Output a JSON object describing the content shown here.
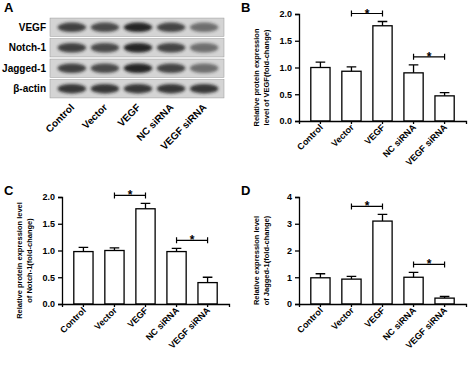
{
  "blot": {
    "panel_label": "A",
    "proteins": [
      "VEGF",
      "Notch-1",
      "Jagged-1",
      "β-actin"
    ],
    "lanes": [
      "Control",
      "Vector",
      "VEGF",
      "NC siRNA",
      "VEGF siRNA"
    ]
  },
  "chart_data": [
    {
      "type": "bar",
      "panel_label": "B",
      "y_label": [
        "Relative protein expression",
        "level of VEGF(fold-change)"
      ],
      "categories": [
        "Control",
        "Vector",
        "VEGF",
        "NC siRNA",
        "VEGF siRNA"
      ],
      "values": [
        1.0,
        0.93,
        1.78,
        0.9,
        0.47
      ],
      "errors": [
        0.1,
        0.08,
        0.08,
        0.15,
        0.06
      ],
      "color": "#ffffff",
      "ylim": [
        0,
        2
      ],
      "yticks": [
        {
          "value": 0,
          "label": "0.0"
        },
        0.5,
        {
          "value": 1,
          "label": "1.0"
        },
        1.5,
        {
          "value": 2,
          "label": "2.0"
        }
      ],
      "annotations": [
        {
          "text": "*",
          "between": [
            "Vector",
            "VEGF"
          ]
        },
        {
          "text": "*",
          "between": [
            "NC siRNA",
            "VEGF siRNA"
          ]
        }
      ]
    },
    {
      "type": "bar",
      "panel_label": "C",
      "y_label": [
        "Relative protein expression level",
        "of Notch-1(fold-change)"
      ],
      "categories": [
        "Control",
        "Vector",
        "VEGF",
        "NC siRNA",
        "VEGF siRNA"
      ],
      "values": [
        0.98,
        1.0,
        1.78,
        0.98,
        0.4
      ],
      "errors": [
        0.08,
        0.05,
        0.1,
        0.06,
        0.1
      ],
      "color": "#ffffff",
      "ylim": [
        0,
        2
      ],
      "yticks": [
        {
          "value": 0,
          "label": "0.0"
        },
        0.5,
        {
          "value": 1,
          "label": "1.0"
        },
        1.5,
        {
          "value": 2,
          "label": "2.0"
        }
      ],
      "annotations": [
        {
          "text": "*",
          "between": [
            "Vector",
            "VEGF"
          ]
        },
        {
          "text": "*",
          "between": [
            "NC siRNA",
            "VEGF siRNA"
          ]
        }
      ]
    },
    {
      "type": "bar",
      "panel_label": "D",
      "y_label": [
        "Relative expression level",
        "of Jagged-1(fold-change)"
      ],
      "categories": [
        "Control",
        "Vector",
        "VEGF",
        "NC siRNA",
        "VEGF siRNA"
      ],
      "values": [
        0.98,
        0.93,
        3.1,
        1.0,
        0.22
      ],
      "errors": [
        0.15,
        0.1,
        0.25,
        0.18,
        0.06
      ],
      "color": "#ffffff",
      "ylim": [
        0,
        4
      ],
      "yticks": [
        0,
        1,
        2,
        3,
        4
      ],
      "annotations": [
        {
          "text": "*",
          "between": [
            "Vector",
            "VEGF"
          ]
        },
        {
          "text": "*",
          "between": [
            "NC siRNA",
            "VEGF siRNA"
          ]
        }
      ]
    }
  ]
}
